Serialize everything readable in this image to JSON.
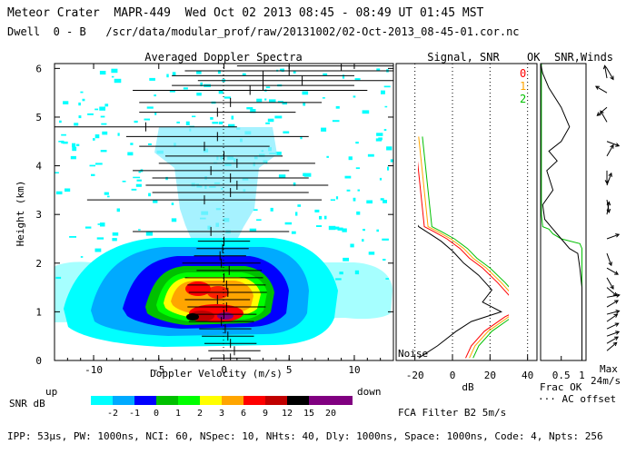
{
  "header": {
    "line1": "Meteor Crater  MAPR-449  Wed Oct 02 2013 08:45 - 08:49 UT 01:45 MST",
    "line2": "Dwell  0 - B   /scr/data/modular_prof/raw/20131002/02-Oct-2013_08-45-01.cor.nc"
  },
  "footer": "IPP: 53µs, PW: 1000ns, NCI: 60, NSpec: 10, NHts: 40, Dly: 1000ns, Space: 1000ns, Code: 4, Npts: 256",
  "chart_data": [
    {
      "type": "heatmap",
      "title": "Averaged Doppler Spectra",
      "xlabel": "Doppler Velocity (m/s)",
      "ylabel": "Height (km)",
      "xlim": [
        -13,
        13
      ],
      "ylim": [
        0,
        6.1
      ],
      "xticks": [
        -10,
        -5,
        0,
        5,
        10
      ],
      "yticks": [
        0,
        1,
        2,
        3,
        4,
        5,
        6
      ],
      "x_left_label": "up",
      "x_right_label": "down",
      "colorbar": {
        "label": "SNR dB",
        "ticks": [
          "-2",
          "-1",
          "0",
          "1",
          "2",
          "3",
          "6",
          "9",
          "12",
          "15",
          "20"
        ],
        "colors": [
          "#00ffff",
          "#00aaff",
          "#0000ff",
          "#00c000",
          "#00ff00",
          "#ffff00",
          "#ffa500",
          "#ff0000",
          "#c00000",
          "#000000",
          "#800080",
          "#800080"
        ]
      },
      "mean_velocity_profile": {
        "height_km": [
          0.05,
          0.2,
          0.35,
          0.5,
          0.65,
          0.8,
          0.95,
          1.1,
          1.25,
          1.4,
          1.55,
          1.7,
          1.85,
          2.0,
          2.15,
          2.3,
          2.45,
          2.65,
          3.3,
          3.45,
          3.6,
          3.75,
          3.9,
          4.05,
          4.2,
          4.4,
          4.6,
          4.8,
          5.1,
          5.3,
          5.55,
          5.65,
          5.75,
          5.85,
          5.95,
          6.05
        ],
        "velocity_ms": [
          0.5,
          0.8,
          0.5,
          0.3,
          0.1,
          -0.2,
          0.0,
          0.2,
          -0.5,
          0.3,
          0.2,
          0.0,
          0.4,
          -0.2,
          -0.3,
          -0.1,
          0.0,
          -1.0,
          -1.5,
          0.5,
          1.0,
          0.5,
          -1.0,
          1.0,
          0.0,
          -1.5,
          -0.5,
          -6.0,
          -0.5,
          0.5,
          2.0,
          3.0,
          6.0,
          3.0,
          5.0,
          9.0
        ],
        "spread_ms": [
          1.5,
          2.0,
          2.0,
          2.0,
          2.0,
          2.5,
          2.5,
          3.0,
          2.5,
          3.0,
          3.0,
          3.0,
          2.5,
          3.0,
          2.0,
          2.0,
          2.0,
          6.0,
          9.0,
          6.0,
          7.0,
          6.0,
          6.0,
          6.0,
          4.5,
          5.0,
          7.0,
          7.0,
          6.0,
          7.0,
          9.0,
          7.0,
          8.0,
          7.0,
          8.0,
          8.0
        ]
      }
    },
    {
      "type": "line",
      "title": "Signal, SNR",
      "xlabel": "dB",
      "xlim": [
        -30,
        45
      ],
      "ylim": [
        0,
        6.1
      ],
      "xticks": [
        -20,
        0,
        20,
        40
      ],
      "note_bottom": "Noise",
      "legend_title": "OK",
      "series": [
        {
          "name": "0",
          "color": "#ff0000",
          "x": [
            7,
            10,
            17,
            28,
            36,
            31,
            24,
            16,
            9,
            4,
            -3,
            -10,
            -15,
            -20
          ],
          "y": [
            0.05,
            0.3,
            0.6,
            0.9,
            1.05,
            1.3,
            1.6,
            1.9,
            2.1,
            2.3,
            2.5,
            2.65,
            2.75,
            4.6
          ]
        },
        {
          "name": "1",
          "color": "#ffa500",
          "x": [
            9,
            12,
            19,
            30,
            38,
            33,
            26,
            18,
            11,
            6,
            -1,
            -8,
            -13,
            -18
          ],
          "y": [
            0.05,
            0.3,
            0.6,
            0.9,
            1.05,
            1.3,
            1.6,
            1.9,
            2.1,
            2.3,
            2.5,
            2.65,
            2.75,
            4.6
          ]
        },
        {
          "name": "2",
          "color": "#00c000",
          "x": [
            11,
            14,
            21,
            32,
            40,
            35,
            28,
            20,
            13,
            8,
            1,
            -6,
            -11,
            -16
          ],
          "y": [
            0.05,
            0.3,
            0.6,
            0.9,
            1.05,
            1.3,
            1.6,
            1.9,
            2.1,
            2.3,
            2.5,
            2.65,
            2.75,
            4.6
          ]
        },
        {
          "name": "noise",
          "color": "#000000",
          "x": [
            -18,
            -8,
            2,
            10,
            26,
            16,
            21,
            14,
            6,
            0,
            -6,
            -12,
            -18,
            -22
          ],
          "y": [
            0.05,
            0.3,
            0.6,
            0.8,
            1.0,
            1.2,
            1.45,
            1.75,
            2.0,
            2.25,
            2.45,
            2.6,
            2.75,
            3.0
          ]
        }
      ]
    },
    {
      "type": "line",
      "title": "SNR,Winds",
      "xlabel": "Frac OK",
      "xlabel2": "··· AC offset",
      "xticks": [
        "0.5",
        "1"
      ],
      "xlim": [
        0,
        1.1
      ],
      "ylim": [
        0,
        6.1
      ],
      "max_label": "Max",
      "max_value": "24m/s",
      "series": [
        {
          "name": "Frac OK",
          "color": "#00c000",
          "x": [
            1.0,
            1.0,
            1.0,
            1.0,
            1.0,
            1.0,
            0.95,
            0.5,
            0.3,
            0.2,
            0.05,
            0.02,
            0.02
          ],
          "y": [
            0.0,
            1.0,
            1.5,
            1.9,
            2.1,
            2.3,
            2.4,
            2.5,
            2.6,
            2.7,
            2.75,
            3.0,
            6.1
          ]
        },
        {
          "name": "SNR",
          "color": "#000000",
          "x": [
            1.0,
            1.0,
            0.95,
            0.9,
            0.7,
            0.5,
            0.3,
            0.1,
            0.05,
            0.3,
            0.15,
            0.4,
            0.2,
            0.5,
            0.7,
            0.5,
            0.2,
            0.05,
            0.0
          ],
          "y": [
            0.0,
            1.5,
            1.9,
            2.2,
            2.3,
            2.5,
            2.7,
            2.9,
            3.2,
            3.5,
            3.9,
            4.1,
            4.3,
            4.5,
            4.8,
            5.2,
            5.6,
            5.9,
            6.1
          ]
        }
      ]
    }
  ]
}
